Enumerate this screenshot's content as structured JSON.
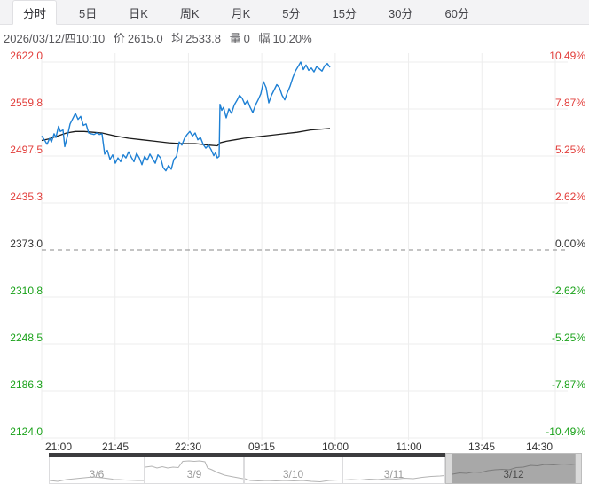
{
  "tabs": {
    "items": [
      {
        "id": "timeshare",
        "label": "分时",
        "active": true
      },
      {
        "id": "5day",
        "label": "5日",
        "active": false
      },
      {
        "id": "day-k",
        "label": "日K",
        "active": false
      },
      {
        "id": "week-k",
        "label": "周K",
        "active": false
      },
      {
        "id": "month-k",
        "label": "月K",
        "active": false
      },
      {
        "id": "5min",
        "label": "5分",
        "active": false
      },
      {
        "id": "15min",
        "label": "15分",
        "active": false
      },
      {
        "id": "30min",
        "label": "30分",
        "active": false
      },
      {
        "id": "60min",
        "label": "60分",
        "active": false
      }
    ]
  },
  "info_bar": {
    "datetime": "2026/03/12/四10:10",
    "price_label": "价",
    "price": "2615.0",
    "avg_label": "均",
    "avg": "2533.8",
    "volume_label": "量",
    "volume": "0",
    "range_label": "幅",
    "range": "10.20%"
  },
  "colors": {
    "up": "#e23d3a",
    "down": "#1aa21a",
    "neutral": "#333333",
    "price_line": "#1e80d4",
    "avg_line": "#1c1c1c",
    "grid": "#ededed",
    "zero_line": "#8a8a8a",
    "nav_spark": "#b4b4b4",
    "nav_spark_selected": "#7c7c7c"
  },
  "chart_data": {
    "type": "line",
    "title": "intraday time-share price chart with average line",
    "prev_close": 2373.0,
    "current_price": 2615.0,
    "current_avg": 2533.8,
    "change_pct": "10.20%",
    "y_top": 2622.0,
    "y_bottom": 2124.0,
    "y_left_ticks": [
      "2622.0",
      "2559.8",
      "2497.5",
      "2435.3",
      "2373.0",
      "2310.8",
      "2248.5",
      "2186.3",
      "2124.0"
    ],
    "y_right_ticks": [
      "10.49%",
      "7.87%",
      "5.25%",
      "2.62%",
      "0.00%",
      "-2.62%",
      "-5.25%",
      "-7.87%",
      "-10.49%"
    ],
    "x_ticks": [
      "21:00",
      "21:45",
      "22:30",
      "09:15",
      "10:00",
      "11:00",
      "13:45",
      "14:30"
    ],
    "grid": true,
    "series": [
      {
        "name": "price",
        "points": [
          [
            0,
            2524
          ],
          [
            3,
            2519
          ],
          [
            6,
            2513
          ],
          [
            9,
            2521
          ],
          [
            11,
            2516
          ],
          [
            14,
            2527
          ],
          [
            16,
            2522
          ],
          [
            19,
            2537
          ],
          [
            21,
            2530
          ],
          [
            24,
            2532
          ],
          [
            26,
            2510
          ],
          [
            29,
            2524
          ],
          [
            32,
            2540
          ],
          [
            35,
            2547
          ],
          [
            38,
            2554
          ],
          [
            41,
            2546
          ],
          [
            44,
            2550
          ],
          [
            47,
            2538
          ],
          [
            50,
            2540
          ],
          [
            53,
            2528
          ],
          [
            56,
            2527
          ],
          [
            59,
            2526
          ],
          [
            62,
            2528
          ],
          [
            65,
            2526
          ],
          [
            68,
            2527
          ],
          [
            71,
            2500
          ],
          [
            74,
            2505
          ],
          [
            77,
            2493
          ],
          [
            80,
            2499
          ],
          [
            83,
            2488
          ],
          [
            86,
            2495
          ],
          [
            89,
            2490
          ],
          [
            92,
            2499
          ],
          [
            95,
            2495
          ],
          [
            98,
            2503
          ],
          [
            101,
            2496
          ],
          [
            104,
            2490
          ],
          [
            107,
            2501
          ],
          [
            110,
            2495
          ],
          [
            113,
            2486
          ],
          [
            116,
            2497
          ],
          [
            119,
            2492
          ],
          [
            122,
            2500
          ],
          [
            125,
            2494
          ],
          [
            128,
            2488
          ],
          [
            131,
            2499
          ],
          [
            134,
            2495
          ],
          [
            137,
            2482
          ],
          [
            140,
            2478
          ],
          [
            143,
            2485
          ],
          [
            146,
            2480
          ],
          [
            149,
            2493
          ],
          [
            152,
            2497
          ],
          [
            155,
            2516
          ],
          [
            158,
            2512
          ],
          [
            161,
            2521
          ],
          [
            164,
            2526
          ],
          [
            167,
            2530
          ],
          [
            170,
            2524
          ],
          [
            173,
            2528
          ],
          [
            176,
            2519
          ],
          [
            179,
            2522
          ],
          [
            182,
            2513
          ],
          [
            185,
            2508
          ],
          [
            188,
            2512
          ],
          [
            191,
            2506
          ],
          [
            194,
            2498
          ],
          [
            196,
            2502
          ],
          [
            198,
            2495
          ],
          [
            200,
            2497
          ],
          [
            201,
            2566
          ],
          [
            203,
            2558
          ],
          [
            205,
            2562
          ],
          [
            208,
            2548
          ],
          [
            211,
            2560
          ],
          [
            214,
            2554
          ],
          [
            217,
            2565
          ],
          [
            220,
            2571
          ],
          [
            223,
            2578
          ],
          [
            226,
            2574
          ],
          [
            229,
            2566
          ],
          [
            232,
            2571
          ],
          [
            235,
            2562
          ],
          [
            238,
            2555
          ],
          [
            241,
            2565
          ],
          [
            244,
            2572
          ],
          [
            247,
            2580
          ],
          [
            250,
            2596
          ],
          [
            253,
            2588
          ],
          [
            256,
            2568
          ],
          [
            259,
            2578
          ],
          [
            262,
            2585
          ],
          [
            265,
            2592
          ],
          [
            268,
            2588
          ],
          [
            271,
            2578
          ],
          [
            274,
            2572
          ],
          [
            277,
            2582
          ],
          [
            280,
            2590
          ],
          [
            283,
            2601
          ],
          [
            286,
            2610
          ],
          [
            289,
            2616
          ],
          [
            292,
            2622
          ],
          [
            295,
            2612
          ],
          [
            298,
            2618
          ],
          [
            301,
            2611
          ],
          [
            304,
            2614
          ],
          [
            307,
            2609
          ],
          [
            310,
            2616
          ],
          [
            313,
            2613
          ],
          [
            316,
            2610
          ],
          [
            319,
            2617
          ],
          [
            322,
            2620
          ],
          [
            325,
            2615
          ]
        ]
      },
      {
        "name": "average",
        "points": [
          [
            0,
            2518
          ],
          [
            8,
            2520
          ],
          [
            18,
            2524
          ],
          [
            28,
            2528
          ],
          [
            38,
            2530
          ],
          [
            48,
            2530
          ],
          [
            58,
            2529
          ],
          [
            68,
            2528
          ],
          [
            83,
            2524
          ],
          [
            98,
            2521
          ],
          [
            113,
            2519
          ],
          [
            128,
            2517
          ],
          [
            143,
            2515
          ],
          [
            158,
            2514
          ],
          [
            173,
            2514
          ],
          [
            188,
            2512
          ],
          [
            198,
            2511
          ],
          [
            201,
            2515
          ],
          [
            208,
            2517
          ],
          [
            218,
            2519
          ],
          [
            228,
            2521
          ],
          [
            243,
            2523
          ],
          [
            258,
            2525
          ],
          [
            273,
            2527
          ],
          [
            288,
            2529
          ],
          [
            303,
            2532
          ],
          [
            325,
            2534
          ]
        ]
      }
    ]
  },
  "navigator": {
    "days": [
      {
        "label": "3/6",
        "selected": false,
        "spark": [
          [
            1,
            31
          ],
          [
            10,
            32
          ],
          [
            20,
            30
          ],
          [
            30,
            29
          ],
          [
            40,
            28
          ],
          [
            50,
            27
          ],
          [
            60,
            28
          ],
          [
            72,
            29.5
          ],
          [
            86,
            30.5
          ],
          [
            100,
            31
          ],
          [
            107,
            31
          ]
        ]
      },
      {
        "label": "3/9",
        "selected": false,
        "spark": [
          [
            109,
            16
          ],
          [
            116,
            15
          ],
          [
            122,
            17
          ],
          [
            128,
            15.5
          ],
          [
            134,
            17
          ],
          [
            140,
            16
          ],
          [
            146,
            16.5
          ],
          [
            151,
            9.5
          ],
          [
            158,
            9
          ],
          [
            164,
            9.5
          ],
          [
            170,
            9
          ],
          [
            176,
            10
          ],
          [
            179,
            17
          ],
          [
            184,
            19
          ],
          [
            190,
            22
          ],
          [
            198,
            25
          ],
          [
            208,
            27
          ],
          [
            219,
            29
          ]
        ]
      },
      {
        "label": "3/10",
        "selected": false,
        "spark": [
          [
            221,
            29
          ],
          [
            227,
            31
          ],
          [
            236,
            31.5
          ],
          [
            246,
            31
          ],
          [
            256,
            31.5
          ],
          [
            266,
            31
          ],
          [
            276,
            31.5
          ],
          [
            286,
            31
          ],
          [
            296,
            32
          ],
          [
            306,
            32.5
          ],
          [
            316,
            31
          ],
          [
            326,
            30.5
          ],
          [
            330,
            30.5
          ]
        ]
      },
      {
        "label": "3/11",
        "selected": false,
        "spark": [
          [
            332,
            30.5
          ],
          [
            341,
            30
          ],
          [
            351,
            30.5
          ],
          [
            361,
            29.5
          ],
          [
            371,
            30
          ],
          [
            381,
            29
          ],
          [
            391,
            29.5
          ],
          [
            401,
            28.5
          ],
          [
            411,
            29
          ],
          [
            421,
            27.5
          ],
          [
            431,
            26.5
          ],
          [
            441,
            26
          ],
          [
            446,
            25.5
          ]
        ]
      },
      {
        "label": "3/12",
        "selected": true,
        "spark": [
          [
            455,
            24
          ],
          [
            463,
            22.5
          ],
          [
            471,
            23
          ],
          [
            479,
            21.5
          ],
          [
            487,
            22
          ],
          [
            495,
            20
          ],
          [
            503,
            19
          ],
          [
            511,
            18.5
          ],
          [
            519,
            19
          ],
          [
            527,
            16.5
          ],
          [
            535,
            16
          ],
          [
            543,
            14
          ],
          [
            551,
            14.5
          ],
          [
            559,
            13
          ],
          [
            569,
            13.5
          ],
          [
            579,
            12.5
          ],
          [
            589,
            13
          ],
          [
            594,
            12.5
          ]
        ]
      }
    ]
  }
}
